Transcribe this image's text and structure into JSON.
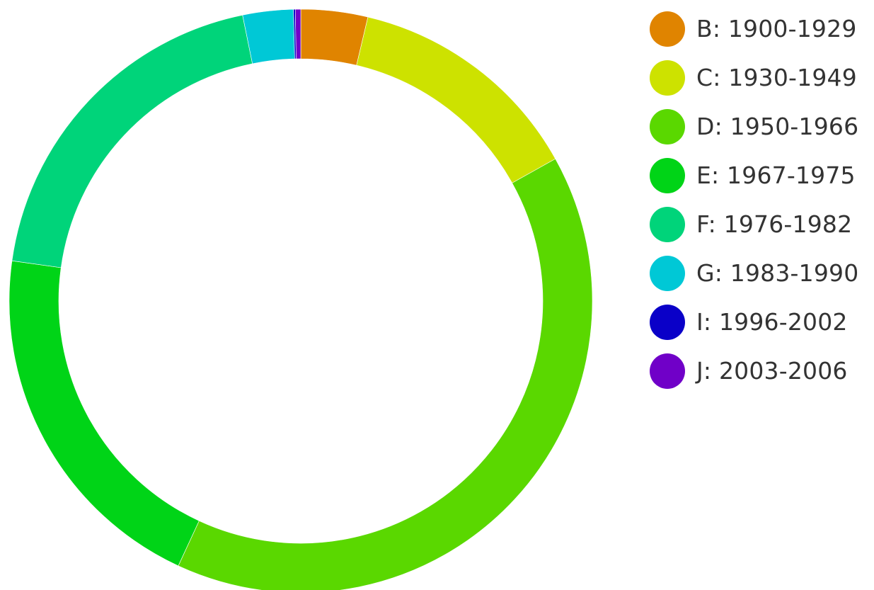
{
  "chart_data": {
    "type": "pie",
    "hole": true,
    "legend": "right",
    "categories": [
      "B: 1900-1929",
      "C: 1930-1949",
      "D: 1950-1966",
      "E: 1967-1975",
      "F: 1976-1982",
      "G: 1983-1990",
      "I: 1996-2002",
      "J: 2003-2006"
    ],
    "values": [
      3.7,
      13.2,
      40.0,
      20.3,
      19.6,
      2.8,
      0.1,
      0.3
    ],
    "colors": [
      "#e08400",
      "#cde200",
      "#5ad800",
      "#00d417",
      "#00d47a",
      "#00c8d6",
      "#0a00c8",
      "#7000c8"
    ]
  }
}
